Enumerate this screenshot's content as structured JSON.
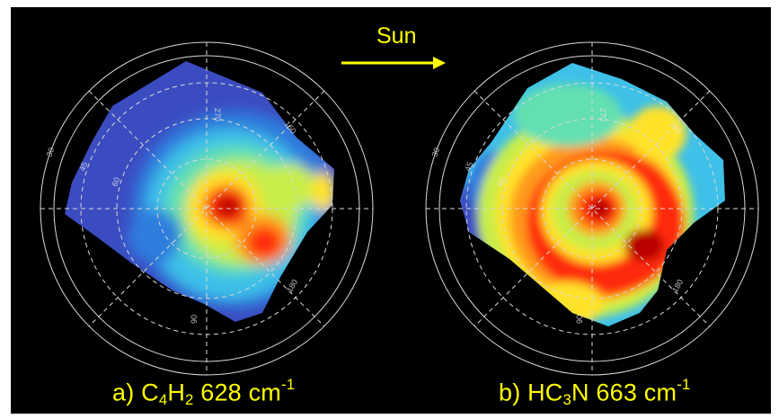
{
  "sun": {
    "label": "Sun",
    "arrow_color": "#ffff00"
  },
  "panels": [
    {
      "id": "a",
      "prefix": "a) C",
      "sub1": "4",
      "mid": "H",
      "sub2": "2",
      "rest": " 628 cm",
      "sup": "-1",
      "grid_labels": [
        "270",
        "30",
        "45",
        "60",
        "150",
        "90",
        "180"
      ]
    },
    {
      "id": "b",
      "prefix": "b) HC",
      "sub1": "3",
      "mid": "N 663 cm",
      "sup": "-1",
      "grid_labels": [
        "270",
        "30",
        "45",
        "60",
        "150",
        "90",
        "180"
      ]
    }
  ],
  "colors": {
    "background": "#000000",
    "caption": "#ffff00",
    "grid": "#d9d9d9",
    "colormap": [
      "#3b4cc0",
      "#2f7bdc",
      "#3ec0e8",
      "#63e0b0",
      "#c8ee4a",
      "#ffe22a",
      "#ff9a1a",
      "#ff2a10",
      "#b80000"
    ]
  }
}
